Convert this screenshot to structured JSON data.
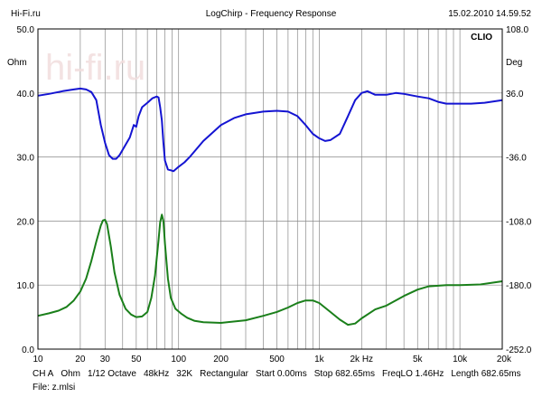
{
  "header": {
    "left": "Hi-Fi.ru",
    "center": "LogChirp - Frequency Response",
    "right": "15.02.2010 14.59.52"
  },
  "watermark": {
    "text": "hi-fi.ru",
    "brand_label": "CLIO"
  },
  "chart_data": {
    "type": "line",
    "x_scale": "log",
    "xlim": [
      10,
      20000
    ],
    "x_ticks": [
      10,
      20,
      30,
      50,
      100,
      200,
      500,
      1000,
      2000,
      5000,
      10000,
      20000
    ],
    "x_tick_labels": [
      "10",
      "20",
      "30",
      "50",
      "100",
      "200",
      "500",
      "1k",
      "2k Hz",
      "5k",
      "10k",
      "20k"
    ],
    "left_axis": {
      "unit": "Ohm",
      "ylim": [
        0,
        50
      ],
      "ticks": [
        0,
        10,
        20,
        30,
        40,
        50
      ],
      "tick_labels": [
        "0.0",
        "10.0",
        "20.0",
        "30.0",
        "40.0",
        "50.0"
      ]
    },
    "right_axis": {
      "unit": "Deg",
      "ylim": [
        -252,
        108
      ],
      "ticks": [
        -252,
        -180,
        -108,
        -36,
        36,
        108
      ],
      "tick_labels": [
        "-252.0",
        "-180.0",
        "-108.0",
        "-36.0",
        "36.0",
        "108.0"
      ]
    },
    "grid": true,
    "series": [
      {
        "axis": "left",
        "color": "#1a7f1a",
        "points": [
          [
            10,
            5.2
          ],
          [
            12,
            5.6
          ],
          [
            14,
            6.0
          ],
          [
            16,
            6.6
          ],
          [
            18,
            7.6
          ],
          [
            20,
            9.0
          ],
          [
            22,
            11.0
          ],
          [
            24,
            13.8
          ],
          [
            26,
            16.8
          ],
          [
            28,
            19.3
          ],
          [
            29,
            20.1
          ],
          [
            30,
            20.2
          ],
          [
            31,
            19.5
          ],
          [
            33,
            16.0
          ],
          [
            35,
            12.0
          ],
          [
            38,
            8.5
          ],
          [
            42,
            6.3
          ],
          [
            46,
            5.4
          ],
          [
            50,
            5.0
          ],
          [
            55,
            5.1
          ],
          [
            60,
            5.8
          ],
          [
            64,
            8.0
          ],
          [
            68,
            11.5
          ],
          [
            72,
            17.0
          ],
          [
            74,
            19.8
          ],
          [
            76,
            21.0
          ],
          [
            78,
            20.0
          ],
          [
            80,
            16.5
          ],
          [
            84,
            11.0
          ],
          [
            88,
            8.0
          ],
          [
            95,
            6.3
          ],
          [
            105,
            5.5
          ],
          [
            115,
            4.9
          ],
          [
            130,
            4.4
          ],
          [
            150,
            4.2
          ],
          [
            200,
            4.1
          ],
          [
            300,
            4.5
          ],
          [
            400,
            5.2
          ],
          [
            500,
            5.8
          ],
          [
            600,
            6.5
          ],
          [
            700,
            7.2
          ],
          [
            800,
            7.6
          ],
          [
            900,
            7.6
          ],
          [
            1000,
            7.2
          ],
          [
            1200,
            5.8
          ],
          [
            1400,
            4.6
          ],
          [
            1600,
            3.8
          ],
          [
            1800,
            4.0
          ],
          [
            2000,
            4.8
          ],
          [
            2500,
            6.2
          ],
          [
            3000,
            6.8
          ],
          [
            4000,
            8.3
          ],
          [
            5000,
            9.3
          ],
          [
            6000,
            9.8
          ],
          [
            8000,
            10.0
          ],
          [
            10000,
            10.0
          ],
          [
            14000,
            10.1
          ],
          [
            20000,
            10.6
          ]
        ]
      },
      {
        "axis": "right",
        "color": "#1414d2",
        "points": [
          [
            10,
            33
          ],
          [
            12,
            35
          ],
          [
            15,
            38
          ],
          [
            18,
            40
          ],
          [
            20,
            41
          ],
          [
            22,
            40
          ],
          [
            24,
            37
          ],
          [
            26,
            28
          ],
          [
            28,
            0
          ],
          [
            30,
            -20
          ],
          [
            32,
            -34
          ],
          [
            34,
            -38
          ],
          [
            36,
            -38
          ],
          [
            38,
            -34
          ],
          [
            40,
            -28
          ],
          [
            45,
            -14
          ],
          [
            48,
            0
          ],
          [
            50,
            -2
          ],
          [
            52,
            10
          ],
          [
            55,
            20
          ],
          [
            60,
            25
          ],
          [
            65,
            30
          ],
          [
            70,
            32
          ],
          [
            72,
            31
          ],
          [
            74,
            20
          ],
          [
            76,
            5
          ],
          [
            78,
            -20
          ],
          [
            80,
            -40
          ],
          [
            84,
            -50
          ],
          [
            88,
            -51
          ],
          [
            92,
            -52
          ],
          [
            100,
            -47
          ],
          [
            110,
            -42
          ],
          [
            120,
            -36
          ],
          [
            150,
            -18
          ],
          [
            200,
            0
          ],
          [
            250,
            8
          ],
          [
            300,
            12
          ],
          [
            400,
            15
          ],
          [
            500,
            16
          ],
          [
            600,
            15
          ],
          [
            700,
            10
          ],
          [
            800,
            0
          ],
          [
            900,
            -10
          ],
          [
            1000,
            -15
          ],
          [
            1100,
            -18
          ],
          [
            1200,
            -17
          ],
          [
            1400,
            -10
          ],
          [
            1600,
            10
          ],
          [
            1800,
            28
          ],
          [
            2000,
            36
          ],
          [
            2200,
            38
          ],
          [
            2500,
            34
          ],
          [
            3000,
            34
          ],
          [
            3500,
            36
          ],
          [
            4000,
            35
          ],
          [
            5000,
            32
          ],
          [
            6000,
            30
          ],
          [
            7000,
            26
          ],
          [
            8000,
            24
          ],
          [
            10000,
            24
          ],
          [
            12000,
            24
          ],
          [
            15000,
            25
          ],
          [
            20000,
            28
          ]
        ]
      }
    ]
  },
  "footer": {
    "line1": [
      "CH A",
      "Ohm",
      "1/12 Octave",
      "48kHz",
      "32K",
      "Rectangular",
      "Start 0.00ms",
      "Stop 682.65ms",
      "FreqLO 1.46Hz",
      "Length 682.65ms"
    ],
    "line2": "File: z.mlsi"
  }
}
